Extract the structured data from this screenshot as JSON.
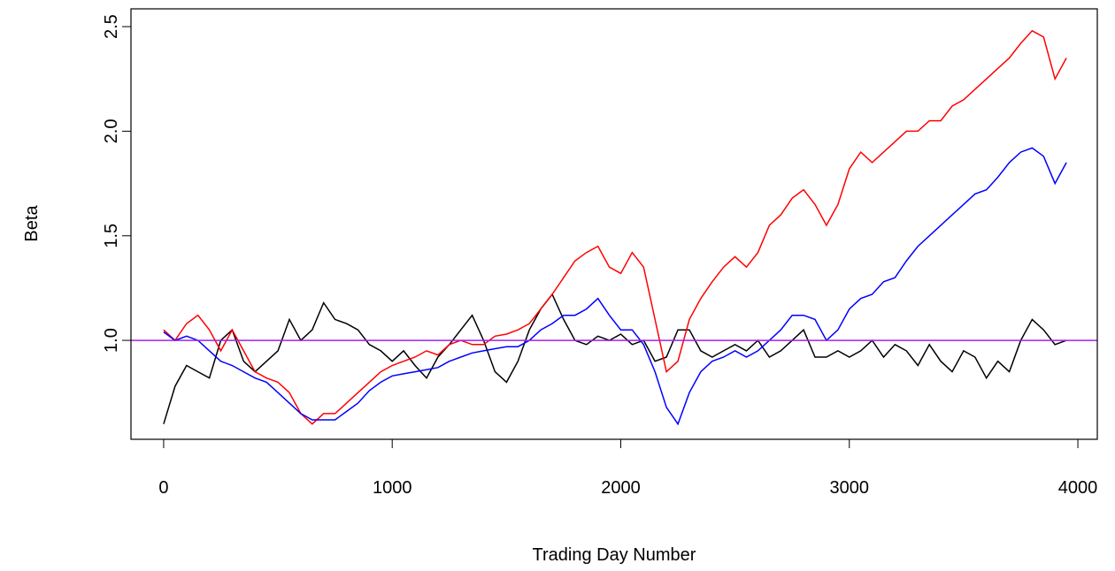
{
  "chart_data": {
    "type": "line",
    "xlabel": "Trading Day Number",
    "ylabel": "Beta",
    "x": [
      0,
      50,
      100,
      150,
      200,
      250,
      300,
      350,
      400,
      450,
      500,
      550,
      600,
      650,
      700,
      750,
      800,
      850,
      900,
      950,
      1000,
      1050,
      1100,
      1150,
      1200,
      1250,
      1300,
      1350,
      1400,
      1450,
      1500,
      1550,
      1600,
      1650,
      1700,
      1750,
      1800,
      1850,
      1900,
      1950,
      2000,
      2050,
      2100,
      2150,
      2200,
      2250,
      2300,
      2350,
      2400,
      2450,
      2500,
      2550,
      2600,
      2650,
      2700,
      2750,
      2800,
      2850,
      2900,
      2950,
      3000,
      3050,
      3100,
      3150,
      3200,
      3250,
      3300,
      3350,
      3400,
      3450,
      3500,
      3550,
      3600,
      3650,
      3700,
      3750,
      3800,
      3850,
      3900,
      3950
    ],
    "series": [
      {
        "color": "#000000",
        "values": [
          0.6,
          0.78,
          0.88,
          0.85,
          0.82,
          1.0,
          1.05,
          0.9,
          0.85,
          0.9,
          0.95,
          1.1,
          1.0,
          1.05,
          1.18,
          1.1,
          1.08,
          1.05,
          0.98,
          0.95,
          0.9,
          0.95,
          0.88,
          0.82,
          0.92,
          0.98,
          1.05,
          1.12,
          1.0,
          0.85,
          0.8,
          0.9,
          1.05,
          1.15,
          1.22,
          1.1,
          1.0,
          0.98,
          1.02,
          1.0,
          1.03,
          0.98,
          1.0,
          0.9,
          0.92,
          1.05,
          1.05,
          0.95,
          0.92,
          0.95,
          0.98,
          0.95,
          1.0,
          0.92,
          0.95,
          1.0,
          1.05,
          0.92,
          0.92,
          0.95,
          0.92,
          0.95,
          1.0,
          0.92,
          0.98,
          0.95,
          0.88,
          0.98,
          0.9,
          0.85,
          0.95,
          0.92,
          0.82,
          0.9,
          0.85,
          1.0,
          1.1,
          1.05,
          0.98,
          1.0
        ]
      },
      {
        "color": "#ff0000",
        "values": [
          1.05,
          1.0,
          1.08,
          1.12,
          1.05,
          0.95,
          1.05,
          0.95,
          0.85,
          0.82,
          0.8,
          0.75,
          0.65,
          0.6,
          0.65,
          0.65,
          0.7,
          0.75,
          0.8,
          0.85,
          0.88,
          0.9,
          0.92,
          0.95,
          0.93,
          0.98,
          1.0,
          0.98,
          0.98,
          1.02,
          1.03,
          1.05,
          1.08,
          1.15,
          1.22,
          1.3,
          1.38,
          1.42,
          1.45,
          1.35,
          1.32,
          1.42,
          1.35,
          1.1,
          0.85,
          0.9,
          1.1,
          1.2,
          1.28,
          1.35,
          1.4,
          1.35,
          1.42,
          1.55,
          1.6,
          1.68,
          1.72,
          1.65,
          1.55,
          1.65,
          1.82,
          1.9,
          1.85,
          1.9,
          1.95,
          2.0,
          2.0,
          2.05,
          2.05,
          2.12,
          2.15,
          2.2,
          2.25,
          2.3,
          2.35,
          2.42,
          2.48,
          2.45,
          2.25,
          2.35
        ]
      },
      {
        "color": "#0000ff",
        "values": [
          1.04,
          1.0,
          1.02,
          1.0,
          0.95,
          0.9,
          0.88,
          0.85,
          0.82,
          0.8,
          0.75,
          0.7,
          0.65,
          0.62,
          0.62,
          0.62,
          0.66,
          0.7,
          0.76,
          0.8,
          0.83,
          0.84,
          0.85,
          0.86,
          0.87,
          0.9,
          0.92,
          0.94,
          0.95,
          0.96,
          0.97,
          0.97,
          1.0,
          1.05,
          1.08,
          1.12,
          1.12,
          1.15,
          1.2,
          1.12,
          1.05,
          1.05,
          0.98,
          0.85,
          0.68,
          0.6,
          0.75,
          0.85,
          0.9,
          0.92,
          0.95,
          0.92,
          0.95,
          1.0,
          1.05,
          1.12,
          1.12,
          1.1,
          1.0,
          1.05,
          1.15,
          1.2,
          1.22,
          1.28,
          1.3,
          1.38,
          1.45,
          1.5,
          1.55,
          1.6,
          1.65,
          1.7,
          1.72,
          1.78,
          1.85,
          1.9,
          1.92,
          1.88,
          1.75,
          1.85
        ]
      }
    ],
    "hline": {
      "value": 1,
      "color": "#a020f0"
    },
    "xlim": [
      -143,
      4085
    ],
    "xticks": [
      0,
      1000,
      2000,
      3000,
      4000
    ],
    "ylim": [
      0.527,
      2.585
    ],
    "yticks": [
      {
        "value": 1,
        "label": "1.0"
      },
      {
        "value": 1.5,
        "label": "1.5"
      },
      {
        "value": 2,
        "label": "2.0"
      },
      {
        "value": 2.5,
        "label": "2.5"
      }
    ]
  }
}
